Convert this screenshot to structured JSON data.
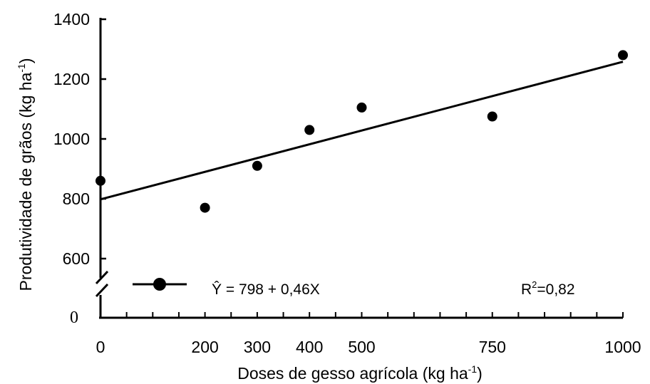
{
  "chart_data": {
    "type": "scatter",
    "x": [
      0,
      200,
      300,
      400,
      500,
      750,
      1000
    ],
    "y": [
      860,
      770,
      910,
      1030,
      1105,
      1075,
      1280
    ],
    "xlim": [
      0,
      1000
    ],
    "ylim": [
      0,
      1400
    ],
    "axis_break": true,
    "x_ticks": [
      0,
      200,
      300,
      400,
      500,
      750,
      1000
    ],
    "x_tick_labels": [
      "0",
      "200",
      "300",
      "400",
      "500",
      "750",
      "1000"
    ],
    "y_ticks": [
      600,
      800,
      1000,
      1200,
      1400
    ],
    "y_tick_labels": [
      "600",
      "800",
      "1000",
      "1200",
      "1400"
    ],
    "y_zero_label": "0",
    "xlabel": {
      "main": "Doses de gesso agrícola (kg ha",
      "sup": "-1",
      "end": ")"
    },
    "ylabel": {
      "main": "Produtividade de grãos (kg ha",
      "sup": "-1",
      "end": ")"
    },
    "fit": {
      "intercept": 798,
      "slope": 0.46
    },
    "legend": {
      "equation": "Ŷ = 798 + 0,46X",
      "r2_prefix": "R",
      "r2_sup": "2",
      "r2_value": "=0,82",
      "position": "bottom"
    },
    "grid": false,
    "marker_color": "#000000",
    "line_color": "#000000"
  }
}
